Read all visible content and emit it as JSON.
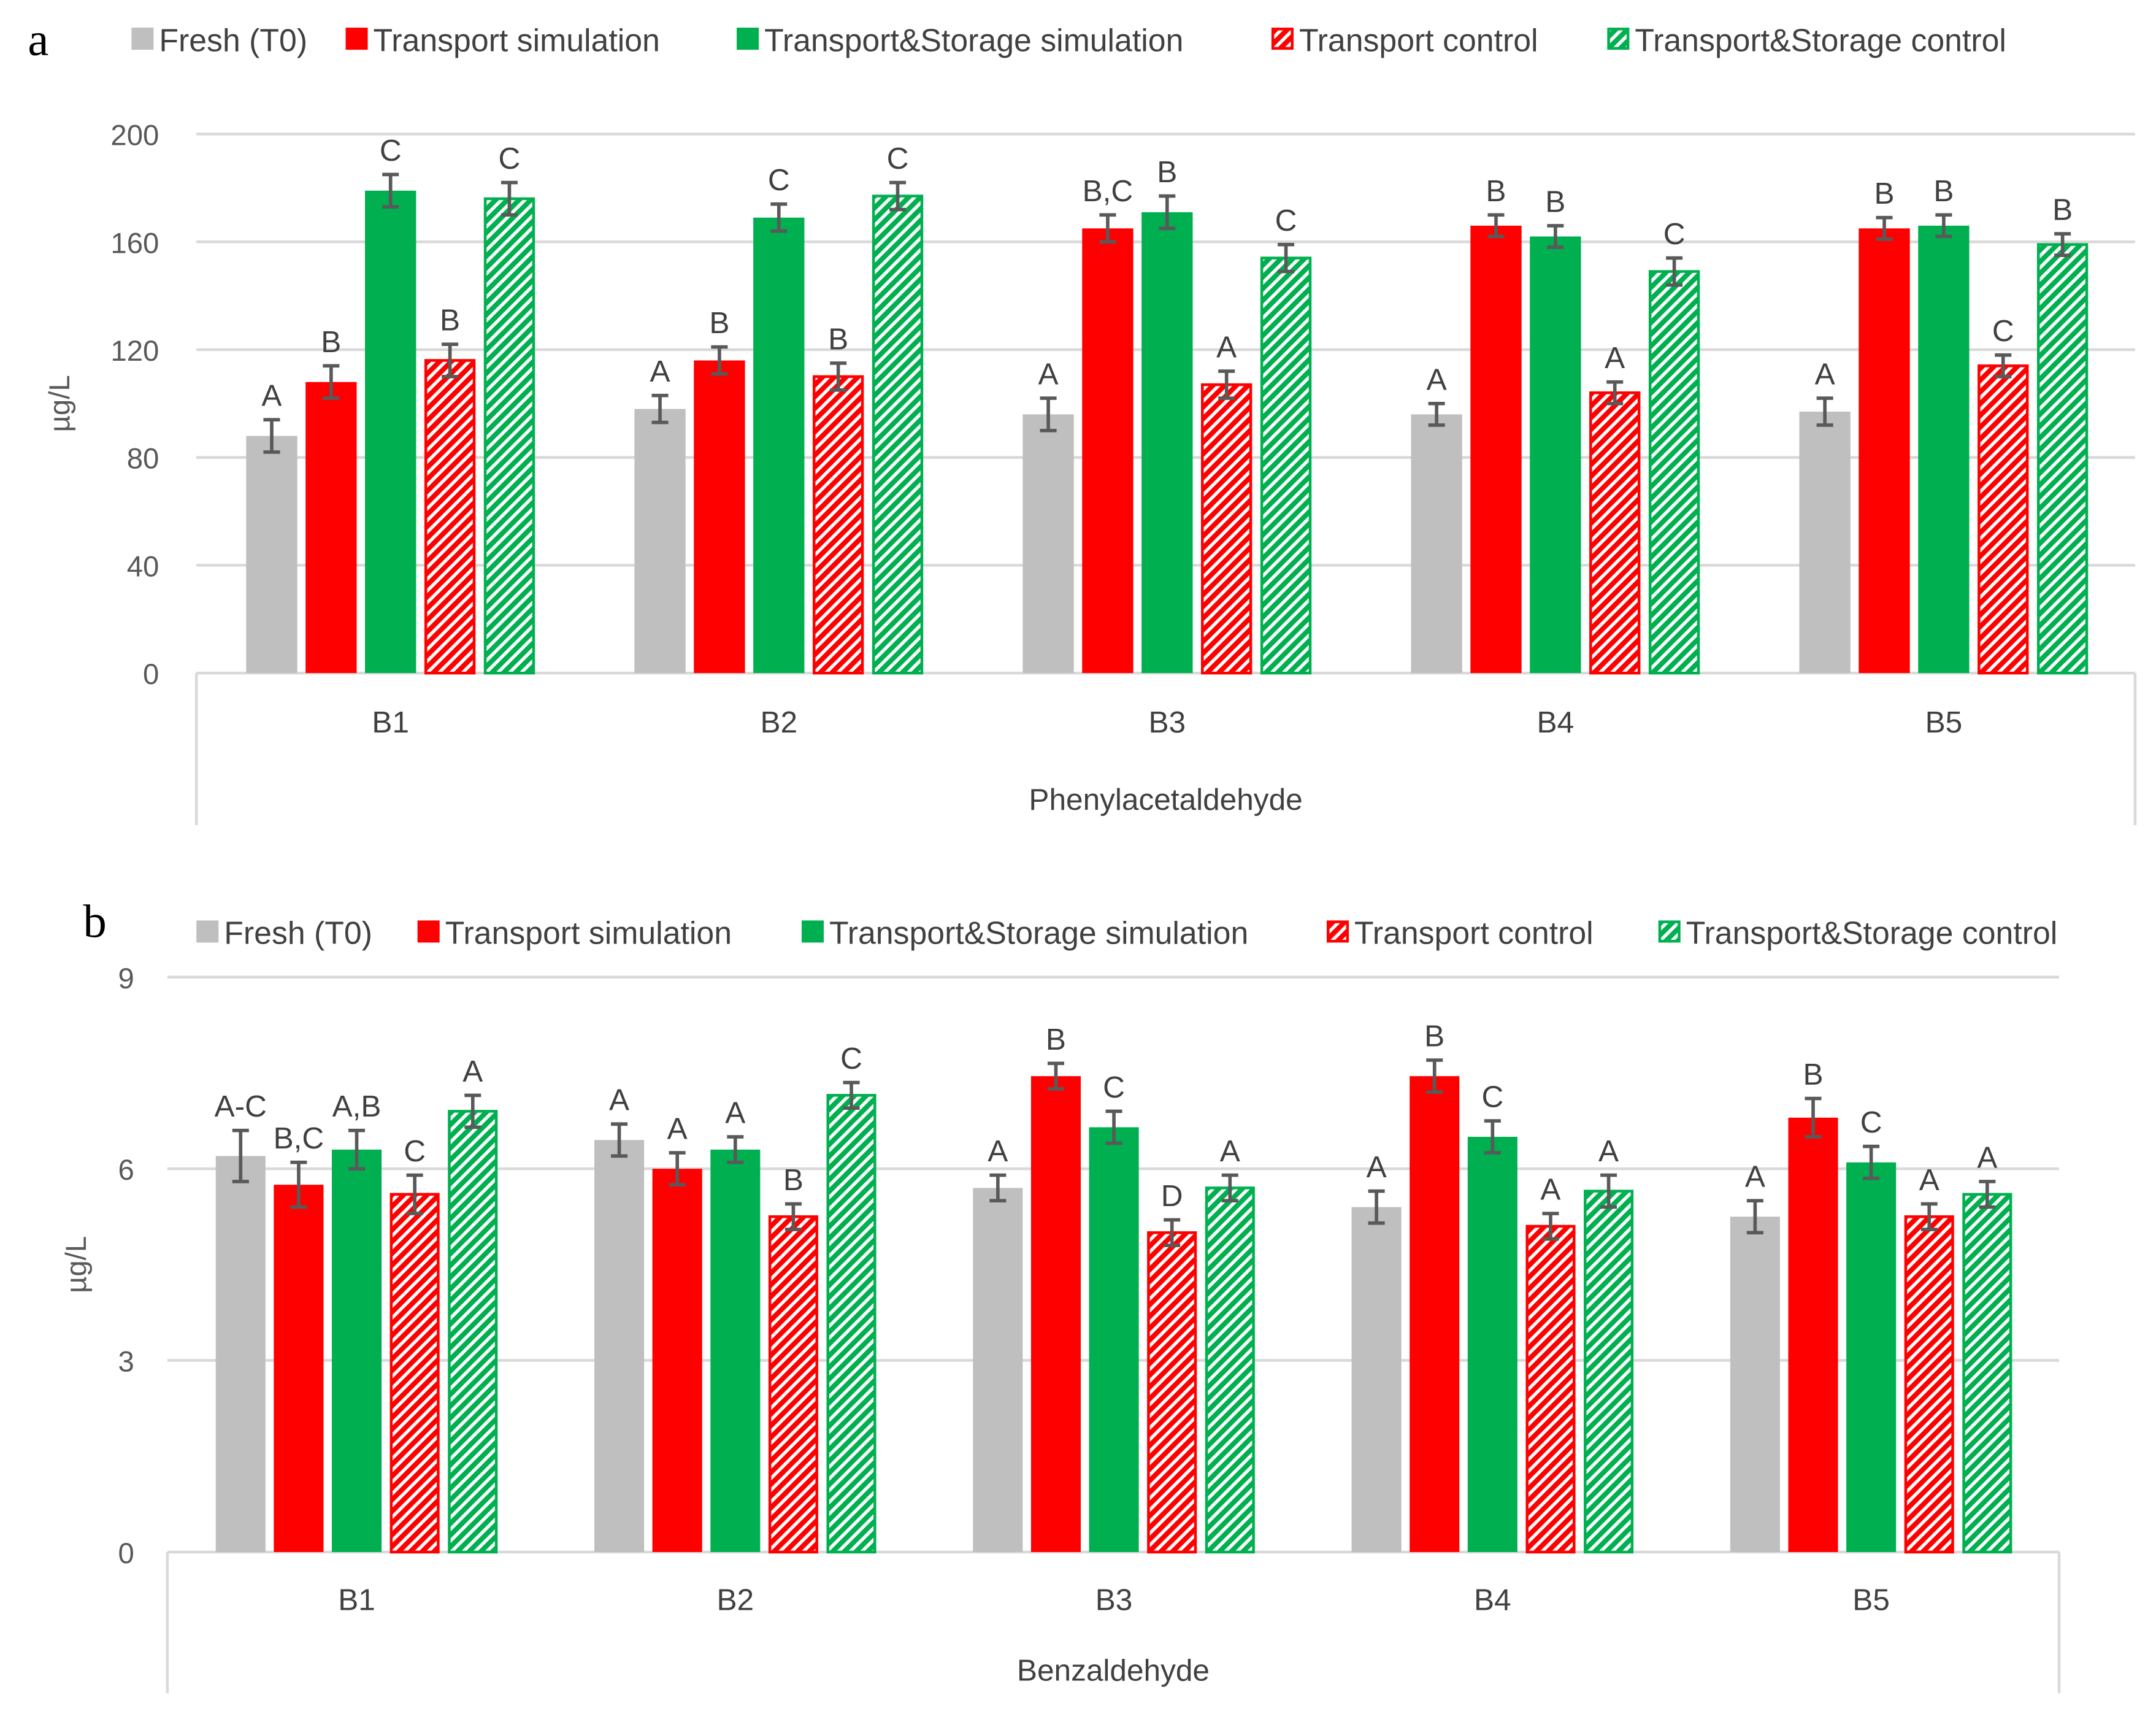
{
  "colors": {
    "fresh": "#bfbfbf",
    "transport": "#ff0000",
    "storage": "#00b050",
    "grid": "#d9d9d9",
    "error": "#595959"
  },
  "chart_data": [
    {
      "type": "bar",
      "panel_label": "a",
      "xlabel": "Phenylacetaldehyde",
      "ylabel": "µg/L",
      "ylim": [
        0,
        200
      ],
      "yticks": [
        0,
        40,
        80,
        120,
        160,
        200
      ],
      "grid": true,
      "legend_position": "top",
      "categories": [
        "B1",
        "B2",
        "B3",
        "B4",
        "B5"
      ],
      "series": [
        {
          "name": "Fresh (T0)",
          "style": "fresh",
          "values": [
            88,
            98,
            96,
            96,
            97
          ],
          "errors": [
            6,
            5,
            6,
            4,
            5
          ],
          "letters": [
            "A",
            "A",
            "A",
            "A",
            "A"
          ]
        },
        {
          "name": "Transport simulation",
          "style": "transport",
          "values": [
            108,
            116,
            165,
            166,
            165
          ],
          "errors": [
            6,
            5,
            5,
            4,
            4
          ],
          "letters": [
            "B",
            "B",
            "B,C",
            "B",
            "B"
          ]
        },
        {
          "name": "Transport&Storage simulation",
          "style": "storage",
          "values": [
            179,
            169,
            171,
            162,
            166
          ],
          "errors": [
            6,
            5,
            6,
            4,
            4
          ],
          "letters": [
            "C",
            "C",
            "B",
            "B",
            "B"
          ]
        },
        {
          "name": "Transport control",
          "style": "transport-hatch",
          "values": [
            116,
            110,
            107,
            104,
            114
          ],
          "errors": [
            6,
            5,
            5,
            4,
            4
          ],
          "letters": [
            "B",
            "B",
            "A",
            "A",
            "C"
          ]
        },
        {
          "name": "Transport&Storage control",
          "style": "storage-hatch",
          "values": [
            176,
            177,
            154,
            149,
            159
          ],
          "errors": [
            6,
            5,
            5,
            5,
            4
          ],
          "letters": [
            "C",
            "C",
            "C",
            "C",
            "B"
          ]
        }
      ]
    },
    {
      "type": "bar",
      "panel_label": "b",
      "xlabel": "Benzaldehyde",
      "ylabel": "µg/L",
      "ylim": [
        0,
        9
      ],
      "yticks": [
        0,
        3,
        6,
        9
      ],
      "grid": true,
      "legend_position": "top",
      "categories": [
        "B1",
        "B2",
        "B3",
        "B4",
        "B5"
      ],
      "series": [
        {
          "name": "Fresh (T0)",
          "style": "fresh",
          "values": [
            6.2,
            6.45,
            5.7,
            5.4,
            5.25
          ],
          "errors": [
            0.4,
            0.25,
            0.2,
            0.25,
            0.25
          ],
          "letters": [
            "A-C",
            "A",
            "A",
            "A",
            "A"
          ]
        },
        {
          "name": "Transport simulation",
          "style": "transport",
          "values": [
            5.75,
            6.0,
            7.45,
            7.45,
            6.8
          ],
          "errors": [
            0.35,
            0.25,
            0.2,
            0.25,
            0.3
          ],
          "letters": [
            "B,C",
            "A",
            "B",
            "B",
            "B"
          ]
        },
        {
          "name": "Transport&Storage simulation",
          "style": "storage",
          "values": [
            6.3,
            6.3,
            6.65,
            6.5,
            6.1
          ],
          "errors": [
            0.3,
            0.2,
            0.25,
            0.25,
            0.25
          ],
          "letters": [
            "A,B",
            "A",
            "C",
            "C",
            "C"
          ]
        },
        {
          "name": "Transport control",
          "style": "transport-hatch",
          "values": [
            5.6,
            5.25,
            5.0,
            5.1,
            5.25
          ],
          "errors": [
            0.3,
            0.2,
            0.2,
            0.2,
            0.2
          ],
          "letters": [
            "C",
            "B",
            "D",
            "A",
            "A"
          ]
        },
        {
          "name": "Transport&Storage control",
          "style": "storage-hatch",
          "values": [
            6.9,
            7.15,
            5.7,
            5.65,
            5.6
          ],
          "errors": [
            0.25,
            0.2,
            0.2,
            0.25,
            0.2
          ],
          "letters": [
            "A",
            "C",
            "A",
            "A",
            "A"
          ]
        }
      ]
    }
  ]
}
